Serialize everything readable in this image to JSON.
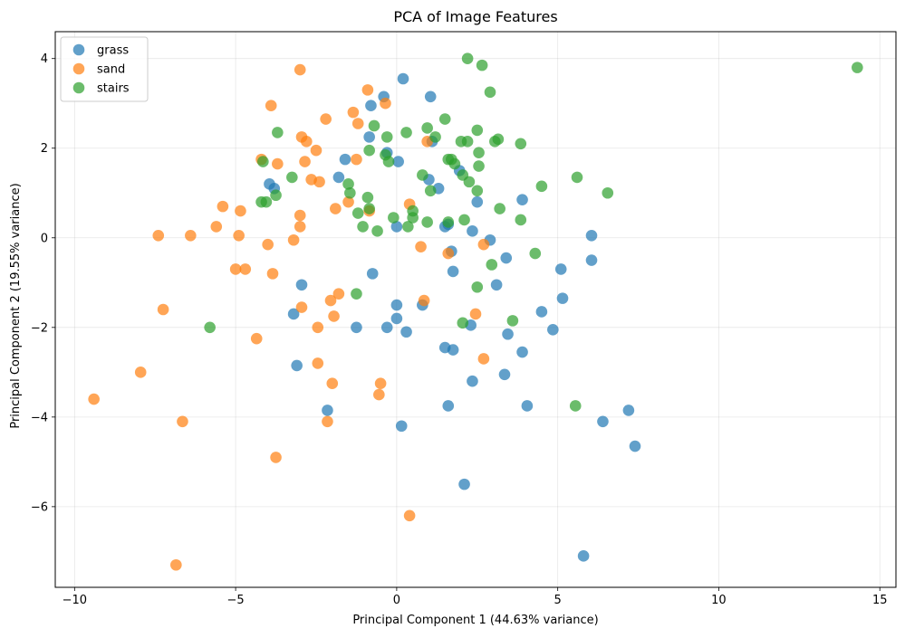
{
  "chart_data": {
    "type": "scatter",
    "title": "PCA of Image Features",
    "xlabel": "Principal Component 1 (44.63% variance)",
    "ylabel": "Principal Component 2 (19.55% variance)",
    "xlim": [
      -10.6,
      15.5
    ],
    "ylim": [
      -7.8,
      4.6
    ],
    "x_ticks": [
      -10,
      -5,
      0,
      5,
      10,
      15
    ],
    "y_ticks": [
      -6,
      -4,
      -2,
      0,
      2,
      4
    ],
    "grid": true,
    "legend_position": "top-left",
    "marker_alpha": 0.7,
    "series": [
      {
        "name": "grass",
        "color": "#1f77b4",
        "points": [
          [
            0.2,
            3.55
          ],
          [
            1.05,
            3.15
          ],
          [
            -0.4,
            3.15
          ],
          [
            -0.8,
            2.95
          ],
          [
            -0.85,
            2.25
          ],
          [
            -1.6,
            1.75
          ],
          [
            -0.3,
            1.9
          ],
          [
            0.05,
            1.7
          ],
          [
            1.1,
            2.15
          ],
          [
            -1.8,
            1.35
          ],
          [
            -3.95,
            1.2
          ],
          [
            -3.8,
            1.1
          ],
          [
            1.0,
            1.3
          ],
          [
            1.3,
            1.1
          ],
          [
            1.95,
            1.5
          ],
          [
            2.5,
            0.8
          ],
          [
            3.9,
            0.85
          ],
          [
            6.05,
            0.05
          ],
          [
            6.05,
            -0.5
          ],
          [
            5.1,
            -0.7
          ],
          [
            3.4,
            -0.45
          ],
          [
            2.9,
            -0.05
          ],
          [
            2.35,
            0.15
          ],
          [
            1.6,
            0.3
          ],
          [
            1.5,
            0.25
          ],
          [
            0.0,
            0.25
          ],
          [
            1.7,
            -0.3
          ],
          [
            1.75,
            -0.75
          ],
          [
            -0.75,
            -0.8
          ],
          [
            -2.95,
            -1.05
          ],
          [
            3.1,
            -1.05
          ],
          [
            5.15,
            -1.35
          ],
          [
            4.5,
            -1.65
          ],
          [
            0.0,
            -1.5
          ],
          [
            -3.2,
            -1.7
          ],
          [
            0.8,
            -1.5
          ],
          [
            0.0,
            -1.8
          ],
          [
            -1.25,
            -2.0
          ],
          [
            -0.3,
            -2.0
          ],
          [
            0.3,
            -2.1
          ],
          [
            2.3,
            -1.95
          ],
          [
            3.45,
            -2.15
          ],
          [
            4.85,
            -2.05
          ],
          [
            1.5,
            -2.45
          ],
          [
            1.75,
            -2.5
          ],
          [
            3.9,
            -2.55
          ],
          [
            -3.1,
            -2.85
          ],
          [
            3.35,
            -3.05
          ],
          [
            2.35,
            -3.2
          ],
          [
            1.6,
            -3.75
          ],
          [
            4.05,
            -3.75
          ],
          [
            7.2,
            -3.85
          ],
          [
            -2.15,
            -3.85
          ],
          [
            0.15,
            -4.2
          ],
          [
            6.4,
            -4.1
          ],
          [
            7.4,
            -4.65
          ],
          [
            2.1,
            -5.5
          ],
          [
            5.8,
            -7.1
          ]
        ]
      },
      {
        "name": "sand",
        "color": "#ff7f0e",
        "points": [
          [
            -3.0,
            3.75
          ],
          [
            -0.9,
            3.3
          ],
          [
            -3.9,
            2.95
          ],
          [
            -0.35,
            3.0
          ],
          [
            -1.35,
            2.8
          ],
          [
            -1.2,
            2.55
          ],
          [
            -2.2,
            2.65
          ],
          [
            -2.95,
            2.25
          ],
          [
            -2.8,
            2.15
          ],
          [
            -2.5,
            1.95
          ],
          [
            0.95,
            2.15
          ],
          [
            -4.2,
            1.75
          ],
          [
            -3.7,
            1.65
          ],
          [
            -2.85,
            1.7
          ],
          [
            -1.25,
            1.75
          ],
          [
            -2.65,
            1.3
          ],
          [
            -2.4,
            1.25
          ],
          [
            -1.5,
            0.8
          ],
          [
            -1.9,
            0.65
          ],
          [
            -0.85,
            0.6
          ],
          [
            0.4,
            0.75
          ],
          [
            -5.4,
            0.7
          ],
          [
            -3.0,
            0.5
          ],
          [
            -4.85,
            0.6
          ],
          [
            -5.6,
            0.25
          ],
          [
            -3.0,
            0.25
          ],
          [
            -7.4,
            0.05
          ],
          [
            -6.4,
            0.05
          ],
          [
            -4.9,
            0.05
          ],
          [
            -3.2,
            -0.05
          ],
          [
            -4.0,
            -0.15
          ],
          [
            0.75,
            -0.2
          ],
          [
            2.7,
            -0.15
          ],
          [
            1.6,
            -0.35
          ],
          [
            -5.0,
            -0.7
          ],
          [
            -4.7,
            -0.7
          ],
          [
            -3.85,
            -0.8
          ],
          [
            -1.8,
            -1.25
          ],
          [
            -2.05,
            -1.4
          ],
          [
            0.85,
            -1.4
          ],
          [
            -2.95,
            -1.55
          ],
          [
            -7.25,
            -1.6
          ],
          [
            2.45,
            -1.7
          ],
          [
            -1.95,
            -1.75
          ],
          [
            -2.45,
            -2.0
          ],
          [
            -4.35,
            -2.25
          ],
          [
            2.7,
            -2.7
          ],
          [
            -2.45,
            -2.8
          ],
          [
            -7.95,
            -3.0
          ],
          [
            -2.0,
            -3.25
          ],
          [
            -0.5,
            -3.25
          ],
          [
            -0.55,
            -3.5
          ],
          [
            -9.4,
            -3.6
          ],
          [
            -6.65,
            -4.1
          ],
          [
            -2.15,
            -4.1
          ],
          [
            -3.75,
            -4.9
          ],
          [
            0.4,
            -6.2
          ],
          [
            -6.85,
            -7.3
          ]
        ]
      },
      {
        "name": "stairs",
        "color": "#2ca02c",
        "points": [
          [
            2.2,
            4.0
          ],
          [
            2.65,
            3.85
          ],
          [
            14.3,
            3.8
          ],
          [
            2.9,
            3.25
          ],
          [
            1.5,
            2.65
          ],
          [
            2.5,
            2.4
          ],
          [
            -0.7,
            2.5
          ],
          [
            0.95,
            2.45
          ],
          [
            -3.7,
            2.35
          ],
          [
            0.3,
            2.35
          ],
          [
            -0.3,
            2.25
          ],
          [
            1.2,
            2.25
          ],
          [
            3.15,
            2.2
          ],
          [
            2.0,
            2.15
          ],
          [
            2.2,
            2.15
          ],
          [
            3.05,
            2.15
          ],
          [
            3.85,
            2.1
          ],
          [
            -0.85,
            1.95
          ],
          [
            2.55,
            1.9
          ],
          [
            -0.35,
            1.85
          ],
          [
            1.6,
            1.75
          ],
          [
            1.7,
            1.75
          ],
          [
            1.8,
            1.65
          ],
          [
            -0.25,
            1.7
          ],
          [
            -4.15,
            1.7
          ],
          [
            2.55,
            1.6
          ],
          [
            0.8,
            1.4
          ],
          [
            2.05,
            1.4
          ],
          [
            -3.25,
            1.35
          ],
          [
            5.6,
            1.35
          ],
          [
            2.25,
            1.25
          ],
          [
            -1.5,
            1.2
          ],
          [
            4.5,
            1.15
          ],
          [
            1.05,
            1.05
          ],
          [
            2.5,
            1.05
          ],
          [
            6.55,
            1.0
          ],
          [
            -1.45,
            1.0
          ],
          [
            -3.75,
            0.95
          ],
          [
            -0.9,
            0.9
          ],
          [
            -4.2,
            0.8
          ],
          [
            -4.05,
            0.8
          ],
          [
            3.2,
            0.65
          ],
          [
            -0.85,
            0.65
          ],
          [
            0.5,
            0.6
          ],
          [
            -1.2,
            0.55
          ],
          [
            0.5,
            0.45
          ],
          [
            -0.1,
            0.45
          ],
          [
            2.1,
            0.4
          ],
          [
            3.85,
            0.4
          ],
          [
            0.95,
            0.35
          ],
          [
            1.6,
            0.35
          ],
          [
            -1.05,
            0.25
          ],
          [
            0.35,
            0.25
          ],
          [
            -0.6,
            0.15
          ],
          [
            4.3,
            -0.35
          ],
          [
            2.95,
            -0.6
          ],
          [
            2.5,
            -1.1
          ],
          [
            -1.25,
            -1.25
          ],
          [
            3.6,
            -1.85
          ],
          [
            2.05,
            -1.9
          ],
          [
            -5.8,
            -2.0
          ],
          [
            5.55,
            -3.75
          ]
        ]
      }
    ]
  }
}
